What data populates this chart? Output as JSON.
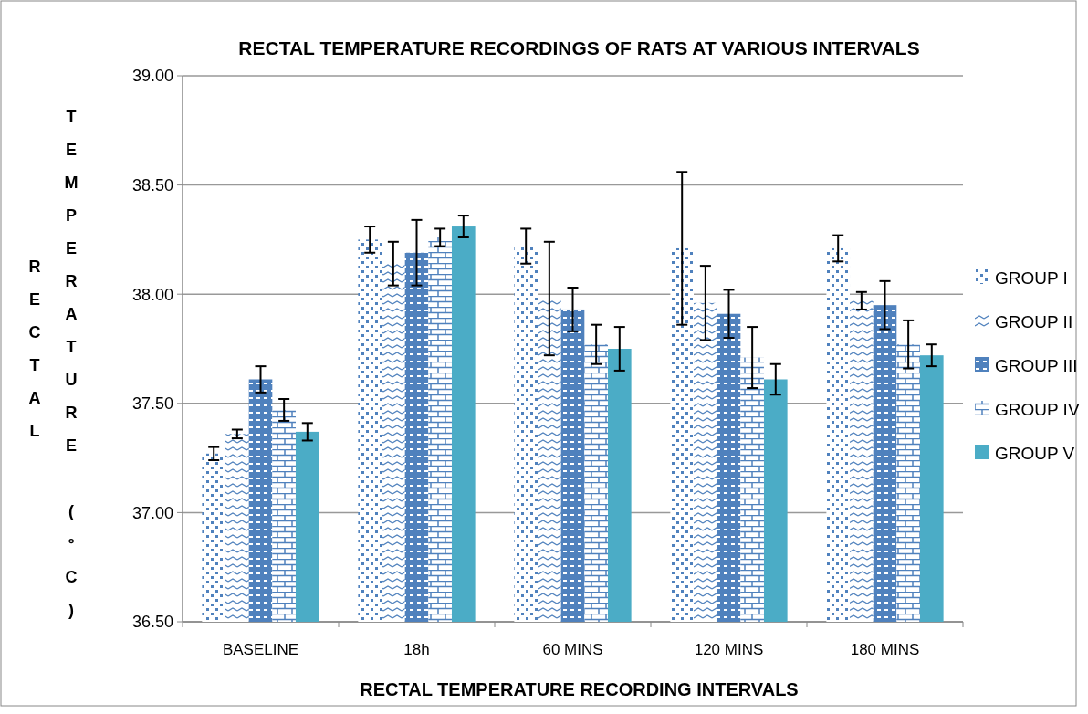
{
  "chart_data": {
    "type": "bar",
    "title": "RECTAL TEMPERATURE RECORDINGS OF RATS AT VARIOUS INTERVALS",
    "xlabel": "RECTAL TEMPERATURE RECORDING INTERVALS",
    "ylabel": "RECTAL TEMPERATURE (°C)",
    "categories": [
      "BASELINE",
      "18h",
      "60 MINS",
      "120 MINS",
      "180 MINS"
    ],
    "series": [
      {
        "name": "GROUP I",
        "color": "#4f81bd",
        "values": [
          37.27,
          38.25,
          38.22,
          38.21,
          38.21
        ],
        "errors": [
          0.03,
          0.06,
          0.08,
          0.35,
          0.06
        ]
      },
      {
        "name": "GROUP II",
        "color": "#4f81bd",
        "values": [
          37.36,
          38.14,
          37.98,
          37.96,
          37.97
        ],
        "errors": [
          0.02,
          0.1,
          0.26,
          0.17,
          0.04
        ]
      },
      {
        "name": "GROUP III",
        "color": "#4f81bd",
        "values": [
          37.61,
          38.19,
          37.93,
          37.91,
          37.95
        ],
        "errors": [
          0.06,
          0.15,
          0.1,
          0.11,
          0.11
        ]
      },
      {
        "name": "GROUP IV",
        "color": "#4f81bd",
        "values": [
          37.47,
          38.26,
          37.77,
          37.71,
          37.77
        ],
        "errors": [
          0.05,
          0.04,
          0.09,
          0.14,
          0.11
        ]
      },
      {
        "name": "GROUP V",
        "color": "#4bacc6",
        "values": [
          37.37,
          38.31,
          37.75,
          37.61,
          37.72
        ],
        "errors": [
          0.04,
          0.05,
          0.1,
          0.07,
          0.05
        ]
      }
    ],
    "ylim": [
      36.5,
      39
    ],
    "yticks": [
      {
        "value": 36.5,
        "label": "36.50"
      },
      {
        "value": 37,
        "label": "37.00"
      },
      {
        "value": 37.5,
        "label": "37.50"
      },
      {
        "value": 38,
        "label": "38.00"
      },
      {
        "value": 38.5,
        "label": "38.50"
      },
      {
        "value": 39,
        "label": "39.00"
      }
    ],
    "grid": "y",
    "legend": "right"
  }
}
